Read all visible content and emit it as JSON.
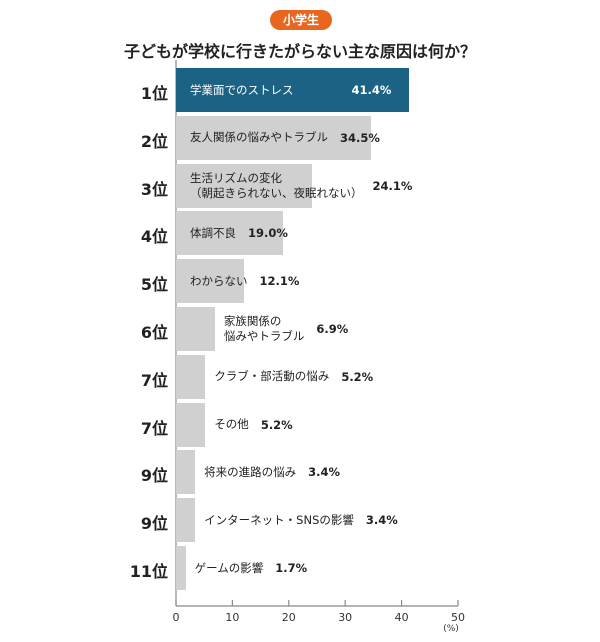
{
  "badge": "小学生",
  "chart_data": {
    "type": "bar",
    "orientation": "horizontal",
    "title": "子どもが学校に行きたがらない主な原因は何か？",
    "unit_label": "(%)",
    "xlim": [
      0,
      50
    ],
    "xticks": [
      "0",
      "10",
      "20",
      "30",
      "40",
      "50"
    ],
    "highlight_color": "#1b6284",
    "bar_color": "#d0d0d0",
    "items": [
      {
        "rank": "1位",
        "label": [
          "学業面でのストレス"
        ],
        "value": 41.4,
        "value_label": "41.4%"
      },
      {
        "rank": "2位",
        "label": [
          "友人関係の悩みやトラブル"
        ],
        "value": 34.5,
        "value_label": "34.5%"
      },
      {
        "rank": "3位",
        "label": [
          "生活リズムの変化",
          "（朝起きられない、夜眠れない）"
        ],
        "value": 24.1,
        "value_label": "24.1%"
      },
      {
        "rank": "4位",
        "label": [
          "体調不良"
        ],
        "value": 19.0,
        "value_label": "19.0%"
      },
      {
        "rank": "5位",
        "label": [
          "わからない"
        ],
        "value": 12.1,
        "value_label": "12.1%"
      },
      {
        "rank": "6位",
        "label": [
          "家族関係の",
          "悩みやトラブル"
        ],
        "value": 6.9,
        "value_label": "6.9%"
      },
      {
        "rank": "7位",
        "label": [
          "クラブ・部活動の悩み"
        ],
        "value": 5.2,
        "value_label": "5.2%"
      },
      {
        "rank": "7位",
        "label": [
          "その他"
        ],
        "value": 5.2,
        "value_label": "5.2%"
      },
      {
        "rank": "9位",
        "label": [
          "将来の進路の悩み"
        ],
        "value": 3.4,
        "value_label": "3.4%"
      },
      {
        "rank": "9位",
        "label": [
          "インターネット・SNSの影響"
        ],
        "value": 3.4,
        "value_label": "3.4%"
      },
      {
        "rank": "11位",
        "label": [
          "ゲームの影響"
        ],
        "value": 1.7,
        "value_label": "1.7%"
      }
    ]
  }
}
